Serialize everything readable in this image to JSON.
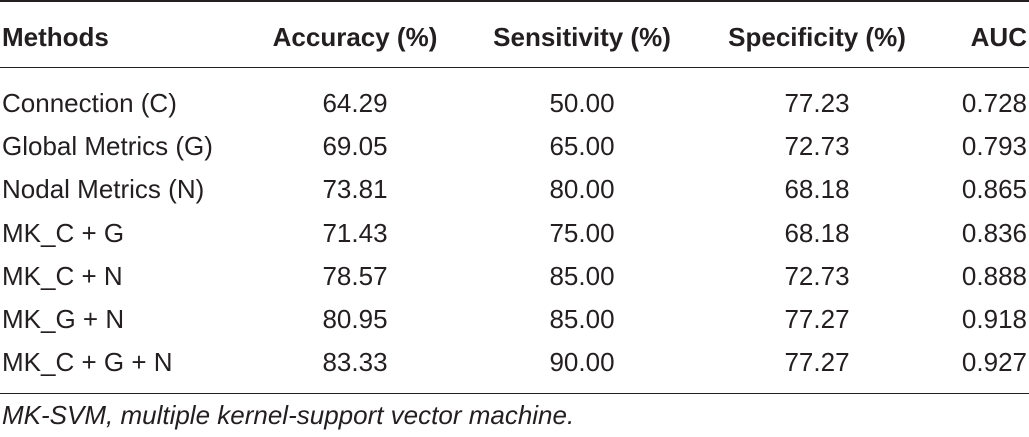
{
  "table": {
    "header": [
      "Methods",
      "Accuracy (%)",
      "Sensitivity (%)",
      "Specificity (%)",
      "AUC"
    ],
    "rows": [
      [
        "Connection (C)",
        "64.29",
        "50.00",
        "77.23",
        "0.728"
      ],
      [
        "Global Metrics (G)",
        "69.05",
        "65.00",
        "72.73",
        "0.793"
      ],
      [
        "Nodal Metrics (N)",
        "73.81",
        "80.00",
        "68.18",
        "0.865"
      ],
      [
        "MK_C + G",
        "71.43",
        "75.00",
        "68.18",
        "0.836"
      ],
      [
        "MK_C + N",
        "78.57",
        "85.00",
        "72.73",
        "0.888"
      ],
      [
        "MK_G + N",
        "80.95",
        "85.00",
        "77.27",
        "0.918"
      ],
      [
        "MK_C + G + N",
        "83.33",
        "90.00",
        "77.27",
        "0.927"
      ]
    ]
  },
  "footnote": "MK-SVM, multiple kernel-support vector machine."
}
